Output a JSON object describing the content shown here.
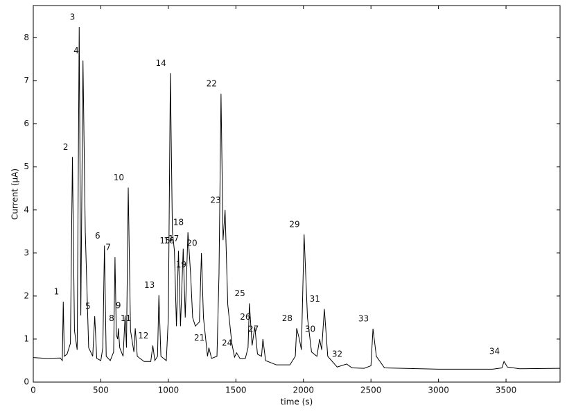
{
  "chart_data": {
    "type": "line",
    "xlabel": "time (s)",
    "ylabel": "Current (μA)",
    "xlim": [
      0,
      3900
    ],
    "ylim": [
      0,
      8.75
    ],
    "xticks": [
      0,
      500,
      1000,
      1500,
      2000,
      2500,
      3000,
      3500
    ],
    "yticks": [
      0,
      1,
      2,
      3,
      4,
      5,
      6,
      7,
      8
    ],
    "grid": false,
    "series": [
      {
        "color": "#000000",
        "x": [
          0,
          100,
          200,
          215,
          222,
          230,
          250,
          275,
          290,
          305,
          325,
          340,
          352,
          368,
          385,
          410,
          440,
          455,
          470,
          500,
          515,
          527,
          540,
          570,
          595,
          605,
          615,
          625,
          630,
          640,
          665,
          680,
          690,
          703,
          720,
          745,
          755,
          770,
          820,
          870,
          885,
          900,
          920,
          930,
          945,
          985,
          1000,
          1015,
          1030,
          1045,
          1060,
          1075,
          1090,
          1110,
          1125,
          1145,
          1165,
          1180,
          1200,
          1230,
          1245,
          1260,
          1290,
          1300,
          1320,
          1360,
          1375,
          1390,
          1405,
          1420,
          1440,
          1470,
          1490,
          1505,
          1530,
          1570,
          1590,
          1600,
          1620,
          1640,
          1660,
          1690,
          1700,
          1720,
          1800,
          1900,
          1940,
          1950,
          1970,
          1985,
          2005,
          2030,
          2060,
          2100,
          2120,
          2135,
          2155,
          2180,
          2250,
          2320,
          2360,
          2450,
          2500,
          2515,
          2540,
          2600,
          3000,
          3400,
          3470,
          3485,
          3510,
          3600,
          3900
        ],
        "values": [
          0.57,
          0.55,
          0.56,
          0.5,
          1.87,
          0.6,
          0.65,
          0.9,
          5.23,
          1.2,
          0.75,
          8.25,
          1.55,
          7.47,
          3.5,
          0.8,
          0.6,
          1.53,
          0.55,
          0.5,
          0.8,
          3.17,
          0.6,
          0.5,
          0.7,
          2.9,
          1.1,
          1.0,
          1.25,
          0.8,
          0.6,
          1.55,
          0.8,
          4.52,
          1.2,
          0.7,
          1.25,
          0.6,
          0.48,
          0.48,
          0.85,
          0.5,
          0.6,
          2.02,
          0.6,
          0.5,
          1.5,
          7.18,
          3.5,
          3.05,
          1.3,
          3.05,
          1.3,
          3.1,
          1.5,
          3.48,
          2.5,
          1.5,
          1.3,
          1.4,
          3.0,
          1.5,
          0.6,
          0.8,
          0.55,
          0.6,
          2.5,
          6.7,
          3.3,
          4.0,
          1.8,
          0.9,
          0.58,
          0.68,
          0.55,
          0.55,
          0.8,
          1.83,
          0.85,
          1.28,
          0.65,
          0.6,
          1.0,
          0.5,
          0.4,
          0.4,
          0.6,
          1.25,
          1.0,
          0.75,
          3.43,
          1.5,
          0.7,
          0.6,
          1.0,
          0.75,
          1.7,
          0.6,
          0.35,
          0.42,
          0.33,
          0.32,
          0.38,
          1.24,
          0.6,
          0.33,
          0.3,
          0.3,
          0.33,
          0.48,
          0.35,
          0.31,
          0.32
        ]
      }
    ],
    "annotations": [
      {
        "text": "1",
        "x": 222,
        "y": 1.87
      },
      {
        "text": "2",
        "x": 290,
        "y": 5.23
      },
      {
        "text": "3",
        "x": 340,
        "y": 8.25
      },
      {
        "text": "4",
        "x": 368,
        "y": 7.47
      },
      {
        "text": "5",
        "x": 455,
        "y": 1.53
      },
      {
        "text": "6",
        "x": 527,
        "y": 3.17
      },
      {
        "text": "7",
        "x": 605,
        "y": 2.9
      },
      {
        "text": "8",
        "x": 630,
        "y": 1.25
      },
      {
        "text": "9",
        "x": 680,
        "y": 1.55
      },
      {
        "text": "10",
        "x": 703,
        "y": 4.52
      },
      {
        "text": "11",
        "x": 755,
        "y": 1.25
      },
      {
        "text": "12",
        "x": 885,
        "y": 0.85
      },
      {
        "text": "13",
        "x": 930,
        "y": 2.02
      },
      {
        "text": "14",
        "x": 1015,
        "y": 7.18
      },
      {
        "text": "15",
        "x": 1045,
        "y": 3.05
      },
      {
        "text": "16",
        "x": 1075,
        "y": 3.05
      },
      {
        "text": "17",
        "x": 1110,
        "y": 3.1
      },
      {
        "text": "18",
        "x": 1145,
        "y": 3.48
      },
      {
        "text": "19",
        "x": 1165,
        "y": 2.5
      },
      {
        "text": "20",
        "x": 1245,
        "y": 3.0
      },
      {
        "text": "21",
        "x": 1300,
        "y": 0.8
      },
      {
        "text": "22",
        "x": 1390,
        "y": 6.7
      },
      {
        "text": "23",
        "x": 1420,
        "y": 4.0
      },
      {
        "text": "24",
        "x": 1505,
        "y": 0.68
      },
      {
        "text": "25",
        "x": 1600,
        "y": 1.83
      },
      {
        "text": "26",
        "x": 1640,
        "y": 1.28
      },
      {
        "text": "27",
        "x": 1700,
        "y": 1.0
      },
      {
        "text": "28",
        "x": 1950,
        "y": 1.25
      },
      {
        "text": "29",
        "x": 2005,
        "y": 3.43
      },
      {
        "text": "30",
        "x": 2120,
        "y": 1.0
      },
      {
        "text": "31",
        "x": 2155,
        "y": 1.7
      },
      {
        "text": "32",
        "x": 2320,
        "y": 0.42
      },
      {
        "text": "33",
        "x": 2515,
        "y": 1.24
      },
      {
        "text": "34",
        "x": 3485,
        "y": 0.48
      }
    ]
  }
}
